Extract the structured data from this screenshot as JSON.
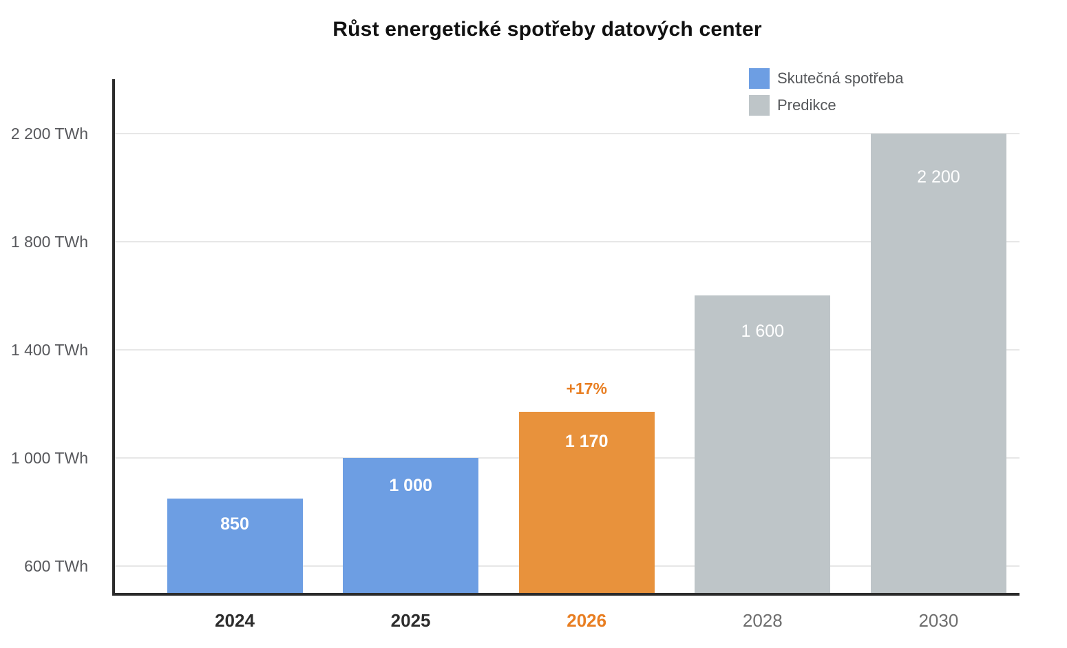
{
  "chart_data": {
    "type": "bar",
    "title": "Růst energetické spotřeby datových center",
    "categories": [
      "2024",
      "2025",
      "2026",
      "2028",
      "2030"
    ],
    "values": [
      850,
      1000,
      1170,
      1600,
      2200
    ],
    "value_labels": [
      "850",
      "1 000",
      "1 170",
      "1 600",
      "2 200"
    ],
    "groups": [
      "actual",
      "actual",
      "highlight",
      "prediction",
      "prediction"
    ],
    "annotation": {
      "text": "+17%",
      "category": "2026",
      "category_index": 2
    },
    "yticks": [
      600,
      1000,
      1400,
      1800,
      2200
    ],
    "ytick_labels": [
      "600 TWh",
      "1 000 TWh",
      "1 400 TWh",
      "1 800 TWh",
      "2 200 TWh"
    ],
    "ylim": [
      500,
      2400
    ],
    "unit": "TWh",
    "grid": true,
    "legend_position": "top-right",
    "legend": [
      {
        "label": "Skutečná spotřeba",
        "group": "actual",
        "color": "#6D9EE3"
      },
      {
        "label": "Predikce",
        "group": "prediction",
        "color": "#BEC5C8"
      }
    ],
    "colors": {
      "actual": "#6D9EE3",
      "highlight": "#E8923C",
      "prediction": "#BEC5C8",
      "accent_text": "#E87E22",
      "axis": "#2B2B2B",
      "grid": "#E7E7E7",
      "tick_text": "#57585C",
      "xlabel_actual": "#2D2D2D",
      "xlabel_prediction": "#6E6E6E",
      "bar_label_text": "#FFFFFF",
      "title_text": "#111111"
    }
  }
}
